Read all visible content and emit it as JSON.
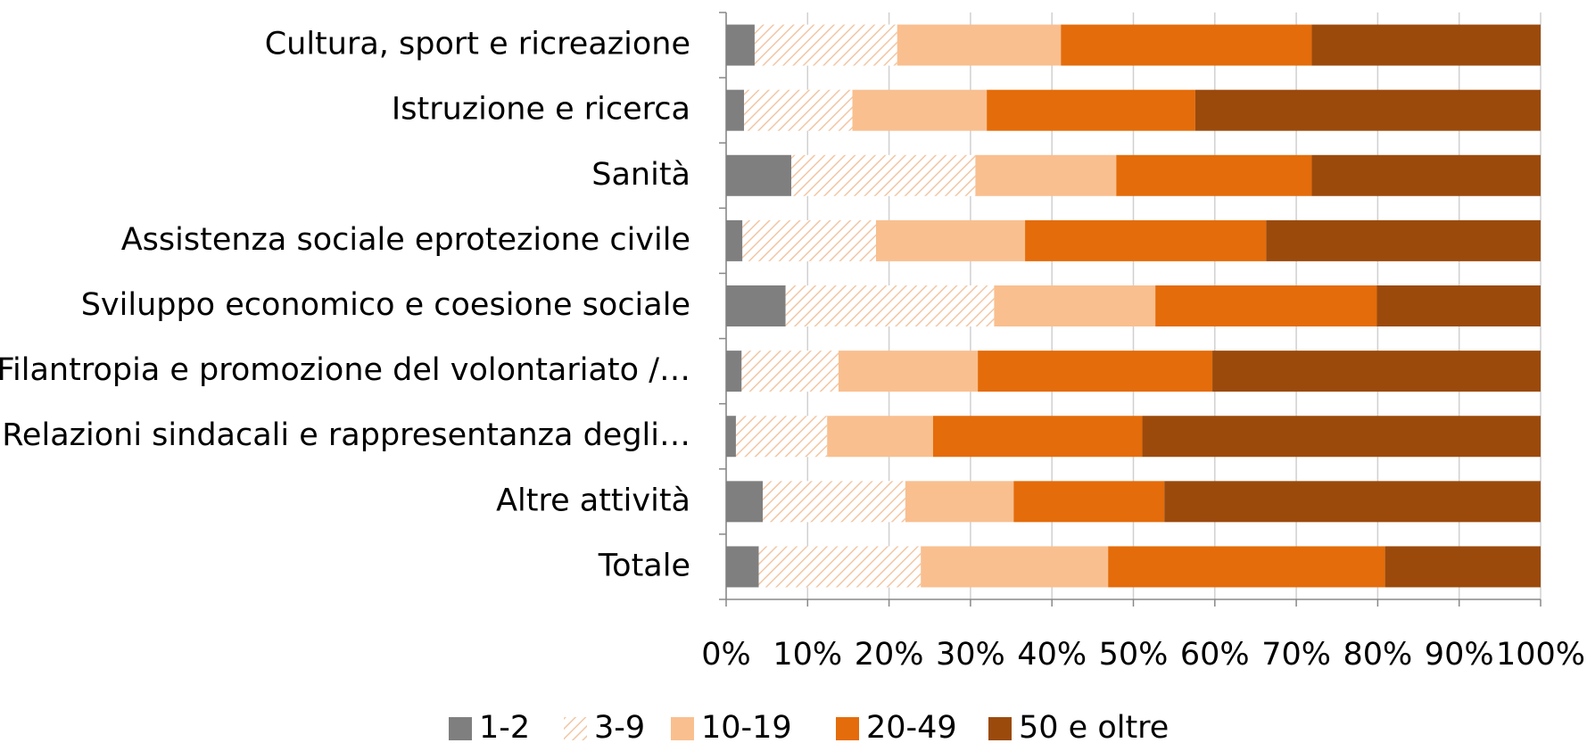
{
  "chart_data": {
    "type": "stacked-barh",
    "categories": [
      "Cultura, sport e ricreazione",
      "Istruzione e ricerca",
      "Sanità",
      "Assistenza sociale eprotezione civile",
      "Sviluppo economico e coesione sociale",
      "Filantropia e promozione del volontariato /…",
      "Relazioni sindacali e rappresentanza degli…",
      "Altre attività",
      "Totale"
    ],
    "series": [
      {
        "name": "1-2",
        "color": "#7f7f7f",
        "values": [
          3.5,
          2.2,
          8.0,
          2.0,
          7.3,
          1.9,
          1.2,
          4.5,
          4.0
        ]
      },
      {
        "name": "3-9",
        "color": "#f2c6a4",
        "pattern": "hatch",
        "values": [
          17.5,
          13.3,
          22.6,
          16.4,
          25.6,
          11.9,
          11.2,
          17.5,
          19.9
        ]
      },
      {
        "name": "10-19",
        "color": "#f9bf8f",
        "values": [
          20.1,
          16.5,
          17.3,
          18.3,
          19.8,
          17.1,
          13.0,
          13.3,
          23.0
        ]
      },
      {
        "name": "20-49",
        "color": "#e46c0a",
        "values": [
          30.8,
          25.6,
          24.0,
          29.6,
          27.2,
          28.8,
          25.7,
          18.5,
          34.0
        ]
      },
      {
        "name": "50 e oltre",
        "color": "#9b4a0c",
        "values": [
          28.1,
          42.4,
          28.1,
          33.7,
          20.1,
          40.3,
          48.9,
          46.2,
          19.1
        ]
      }
    ],
    "xlim": [
      0,
      100
    ],
    "xticks": [
      {
        "value": 0,
        "label": "0%"
      },
      {
        "value": 10,
        "label": "10%"
      },
      {
        "value": 20,
        "label": "20%"
      },
      {
        "value": 30,
        "label": "30%"
      },
      {
        "value": 40,
        "label": "40%"
      },
      {
        "value": 50,
        "label": "50%"
      },
      {
        "value": 60,
        "label": "60%"
      },
      {
        "value": 70,
        "label": "70%"
      },
      {
        "value": 80,
        "label": "80%"
      },
      {
        "value": 90,
        "label": "90%"
      },
      {
        "value": 100,
        "label": "100%"
      }
    ],
    "grid": true,
    "legend": "bottom"
  }
}
